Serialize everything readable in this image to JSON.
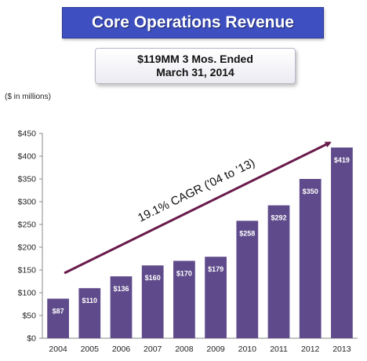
{
  "title": "Core Operations Revenue",
  "subtitle": {
    "line1": "$119MM 3 Mos. Ended",
    "line2": "March 31, 2014"
  },
  "units_label": "($ in millions)",
  "colors": {
    "bar": "#5f4b8b",
    "arrow": "#6a1b4d",
    "banner": "#3d4fc1"
  },
  "chart_data": {
    "type": "bar",
    "categories": [
      "2004",
      "2005",
      "2006",
      "2007",
      "2008",
      "2009",
      "2010",
      "2011",
      "2012",
      "2013"
    ],
    "values": [
      87,
      110,
      136,
      160,
      170,
      179,
      258,
      292,
      350,
      419
    ],
    "data_labels": [
      "$87",
      "$110",
      "$136",
      "$160",
      "$170",
      "$179",
      "$258",
      "$292",
      "$350",
      "$419"
    ],
    "ylim": [
      0,
      450
    ],
    "yticks": [
      0,
      50,
      100,
      150,
      200,
      250,
      300,
      350,
      400,
      450
    ],
    "ytick_labels": [
      "$0",
      "$50",
      "$100",
      "$150",
      "$200",
      "$250",
      "$300",
      "$350",
      "$400",
      "$450"
    ],
    "grid": false,
    "annotation": "19.1% CAGR ('04 to '13)",
    "trend_arrow": {
      "from": [
        "2004",
        150
      ],
      "to": [
        "2013",
        430
      ]
    }
  }
}
